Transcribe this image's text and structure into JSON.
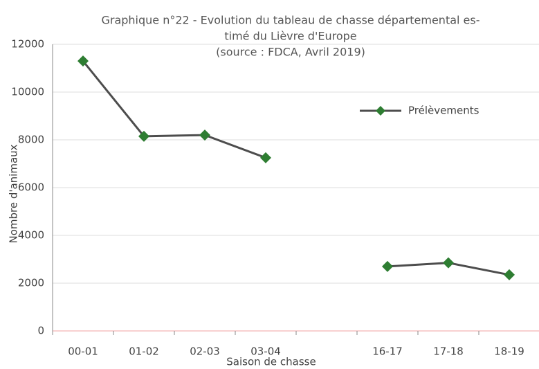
{
  "chart_data": {
    "type": "line",
    "title": [
      "Graphique n°22 - Evolution du tableau de chasse départemental es-",
      "timé du Lièvre d'Europe",
      "(source : FDCA, Avril 2019)"
    ],
    "x_label": "Saison de chasse",
    "y_label": "Nombre d'animaux",
    "categories": [
      "00-01",
      "01-02",
      "02-03",
      "03-04",
      null,
      "16-17",
      "17-18",
      "18-19"
    ],
    "series": [
      {
        "name": "Prélèvements",
        "color": "#4d4d4d",
        "marker_color": "#2e7d32",
        "values": [
          11300,
          8150,
          8200,
          7250,
          null,
          2700,
          2850,
          2350
        ]
      }
    ],
    "ylim": [
      0,
      12000
    ],
    "yticks": [
      0,
      2000,
      4000,
      6000,
      8000,
      10000,
      12000
    ],
    "grid": true,
    "legend": "upper right"
  }
}
